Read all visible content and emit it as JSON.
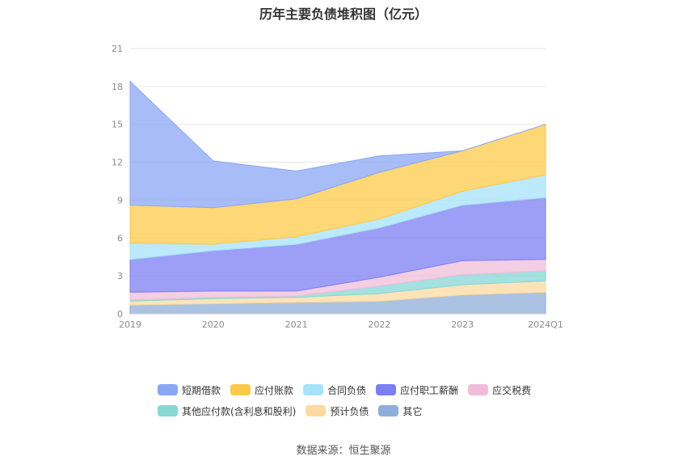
{
  "chart_data": {
    "type": "area",
    "stacked": true,
    "title": "历年主要负债堆积图（亿元）",
    "categories": [
      "2019",
      "2020",
      "2021",
      "2022",
      "2023",
      "2024Q1"
    ],
    "ylim": [
      0,
      21
    ],
    "yticks": [
      0,
      3,
      6,
      9,
      12,
      15,
      18,
      21
    ],
    "grid": true,
    "legend_position": "bottom",
    "series": [
      {
        "name": "其它",
        "color": "#8fadd9",
        "values": [
          0.7,
          0.8,
          0.9,
          1.0,
          1.5,
          1.7
        ]
      },
      {
        "name": "预计负债",
        "color": "#fcdba0",
        "values": [
          0.3,
          0.4,
          0.4,
          0.6,
          0.8,
          0.9
        ]
      },
      {
        "name": "其他应付款(含利息和股利)",
        "color": "#86d7d5",
        "values": [
          0.1,
          0.1,
          0.1,
          0.6,
          0.8,
          0.8
        ]
      },
      {
        "name": "应交税费",
        "color": "#f0bdd9",
        "values": [
          0.6,
          0.5,
          0.4,
          0.7,
          1.1,
          0.9
        ]
      },
      {
        "name": "应付职工薪酬",
        "color": "#7b7ff2",
        "values": [
          2.6,
          3.2,
          3.7,
          3.9,
          4.4,
          4.9
        ]
      },
      {
        "name": "合同负债",
        "color": "#a6e3fa",
        "values": [
          1.3,
          0.5,
          0.6,
          0.7,
          1.1,
          1.8
        ]
      },
      {
        "name": "应付账款",
        "color": "#fdc94a",
        "values": [
          3.0,
          2.9,
          3.0,
          3.7,
          3.2,
          4.0
        ]
      },
      {
        "name": "短期借款",
        "color": "#8ba6f5",
        "values": [
          9.8,
          3.7,
          2.2,
          1.3,
          0.0,
          0.0
        ]
      }
    ],
    "legend_rows": [
      [
        "短期借款",
        "应付账款",
        "合同负债",
        "应付职工薪酬",
        "应交税费"
      ],
      [
        "其他应付款(含利息和股利)",
        "预计负债",
        "其它"
      ]
    ],
    "source": "数据来源：恒生聚源"
  }
}
